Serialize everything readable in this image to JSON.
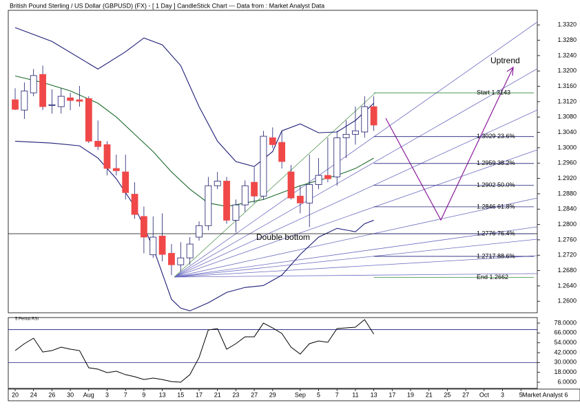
{
  "chart_data": [
    {
      "type": "candlestick",
      "title": "British Pound Sterling / US Dollar (GBPUSD) (FX) - [ 1 Day ] CandleStick Chart --- Data from : Market Analyst Data",
      "x": [
        0,
        1,
        2,
        3,
        4,
        5,
        6,
        7,
        8,
        9,
        10,
        11,
        12,
        13,
        14,
        15,
        16,
        17,
        18,
        19,
        20,
        21,
        22,
        23,
        24,
        25,
        26,
        27,
        28,
        29,
        30,
        31,
        32,
        33,
        34,
        35,
        36,
        37,
        38,
        39
      ],
      "open": [
        1.3125,
        1.3098,
        1.3143,
        1.3191,
        1.311,
        1.3107,
        1.313,
        1.3125,
        1.3128,
        1.3017,
        1.3008,
        1.2946,
        1.2937,
        1.2879,
        1.2821,
        1.2721,
        1.277,
        1.2725,
        1.2695,
        1.2713,
        1.2767,
        1.2797,
        1.2901,
        1.2913,
        1.2811,
        1.2851,
        1.291,
        1.2874,
        1.3026,
        1.3014,
        1.2937,
        1.2874,
        1.2856,
        1.2904,
        1.2928,
        1.2924,
        1.3026,
        1.3035,
        1.3041,
        1.3107
      ],
      "high": [
        1.3155,
        1.317,
        1.3205,
        1.3214,
        1.3152,
        1.3155,
        1.3143,
        1.3161,
        1.3134,
        1.3071,
        1.3017,
        1.2982,
        1.2982,
        1.291,
        1.2847,
        1.2821,
        1.2829,
        1.2749,
        1.2754,
        1.2767,
        1.2808,
        1.2924,
        1.2937,
        1.2924,
        1.2865,
        1.2915,
        1.2949,
        1.3044,
        1.3053,
        1.3044,
        1.2955,
        1.2901,
        1.2982,
        1.2973,
        1.3026,
        1.3044,
        1.3071,
        1.3107,
        1.3134,
        1.3134
      ],
      "low": [
        1.3098,
        1.3075,
        1.3134,
        1.3098,
        1.3089,
        1.3089,
        1.3098,
        1.3107,
        1.3012,
        1.2994,
        1.2928,
        1.2928,
        1.2865,
        1.2815,
        1.2725,
        1.2713,
        1.2704,
        1.2668,
        1.2677,
        1.2695,
        1.2758,
        1.2785,
        1.2892,
        1.2802,
        1.2779,
        1.2833,
        1.2856,
        1.2865,
        1.2999,
        1.2946,
        1.2865,
        1.2829,
        1.2793,
        1.2892,
        1.291,
        1.2901,
        1.2973,
        1.3008,
        1.3026,
        1.3044
      ],
      "close": [
        1.31,
        1.3148,
        1.3188,
        1.3107,
        1.3112,
        1.3134,
        1.3123,
        1.3121,
        1.3017,
        1.3003,
        1.2946,
        1.294,
        1.2883,
        1.2826,
        1.2767,
        1.2767,
        1.2722,
        1.2695,
        1.2713,
        1.2749,
        1.2797,
        1.2901,
        1.2913,
        1.2811,
        1.2851,
        1.2901,
        1.2874,
        1.303,
        1.3008,
        1.2964,
        1.2869,
        1.2856,
        1.2904,
        1.2928,
        1.2919,
        1.3026,
        1.3035,
        1.3044,
        1.3107,
        1.3059
      ],
      "up_color": "#ffffff",
      "down_color": "#f04848",
      "outline_color": "#1a1a6e",
      "lines": [
        {
          "color": "#1c1c78",
          "x": [
            0,
            4,
            9,
            12,
            14,
            16,
            18,
            20,
            22,
            24,
            26,
            28,
            29,
            31,
            33,
            35,
            37,
            39
          ],
          "values": [
            1.3313,
            1.3277,
            1.3205,
            1.325,
            1.3286,
            1.3268,
            1.3214,
            1.3107,
            1.3017,
            1.2964,
            1.2951,
            1.299,
            1.3044,
            1.3062,
            1.3039,
            1.3041,
            1.3071,
            1.3116
          ]
        },
        {
          "color": "#1c1c78",
          "x": [
            0,
            4,
            7,
            9,
            11,
            13,
            15,
            17,
            18,
            19,
            21,
            23,
            25,
            27,
            29,
            31,
            33,
            35,
            37,
            38,
            39
          ],
          "values": [
            1.3017,
            1.3012,
            1.3005,
            1.2973,
            1.2919,
            1.2847,
            1.274,
            1.2605,
            1.2582,
            1.2575,
            1.2596,
            1.2623,
            1.2636,
            1.2641,
            1.2668,
            1.2722,
            1.2767,
            1.279,
            1.2781,
            1.2802,
            1.2811
          ]
        },
        {
          "color": "#1a6a2a",
          "x": [
            0,
            3,
            6,
            9,
            11,
            13,
            15,
            17,
            19,
            21,
            23,
            25,
            27,
            29,
            31,
            33,
            35,
            37,
            39
          ],
          "values": [
            1.3187,
            1.317,
            1.3148,
            1.3116,
            1.308,
            1.3035,
            1.299,
            1.2937,
            1.2892,
            1.2856,
            1.2847,
            1.2856,
            1.2865,
            1.2883,
            1.2901,
            1.2915,
            1.2928,
            1.2946,
            1.2973
          ]
        }
      ],
      "fib_levels": [
        {
          "value": 1.3143,
          "label": "Start 1.3143"
        },
        {
          "value": 1.3029,
          "label": "1.3029 23.6%"
        },
        {
          "value": 1.2959,
          "label": "1.2959 38.2%"
        },
        {
          "value": 1.2902,
          "label": "1.2902 50.0%"
        },
        {
          "value": 1.2846,
          "label": "1.2846 61.8%"
        },
        {
          "value": 1.2776,
          "label": "1.2776 76.4%"
        },
        {
          "value": 1.2717,
          "label": "1.2717 88.6%"
        },
        {
          "value": 1.2662,
          "label": "End 1.2662"
        }
      ],
      "fib_color": "#1c1c78",
      "fib_end_color": "#2a8a3a",
      "support": 1.2776,
      "annotations": [
        "Double bottom",
        "Uptrend"
      ],
      "xlim": [
        -0.75,
        56.78
      ],
      "ylim": [
        1.257,
        1.3358
      ],
      "yticks": [
        {
          "value": 1.26,
          "label": "1.2600"
        },
        {
          "value": 1.264,
          "label": "1.2640"
        },
        {
          "value": 1.268,
          "label": "1.2680"
        },
        {
          "value": 1.272,
          "label": "1.2720"
        },
        {
          "value": 1.276,
          "label": "1.2760"
        },
        {
          "value": 1.28,
          "label": "1.2800"
        },
        {
          "value": 1.284,
          "label": "1.2840"
        },
        {
          "value": 1.288,
          "label": "1.2880"
        },
        {
          "value": 1.292,
          "label": "1.2920"
        },
        {
          "value": 1.296,
          "label": "1.2960"
        },
        {
          "value": 1.3,
          "label": "1.3000"
        },
        {
          "value": 1.304,
          "label": "1.3040"
        },
        {
          "value": 1.308,
          "label": "1.3080"
        },
        {
          "value": 1.312,
          "label": "1.3120"
        },
        {
          "value": 1.316,
          "label": "1.3160"
        },
        {
          "value": 1.32,
          "label": "1.3200"
        },
        {
          "value": 1.324,
          "label": "1.3240"
        },
        {
          "value": 1.328,
          "label": "1.3280"
        },
        {
          "value": 1.332,
          "label": "1.3320"
        }
      ]
    },
    {
      "type": "line",
      "title": "5 Period RSI",
      "x": [
        0,
        1,
        2,
        3,
        4,
        5,
        6,
        7,
        8,
        9,
        10,
        11,
        12,
        13,
        14,
        15,
        16,
        17,
        18,
        19,
        20,
        21,
        22,
        23,
        24,
        25,
        26,
        27,
        28,
        29,
        30,
        31,
        32,
        33,
        34,
        35,
        36,
        37,
        38,
        39
      ],
      "values": [
        44.5,
        52.9,
        59.6,
        42.8,
        44.5,
        48.7,
        46.2,
        44.5,
        23.6,
        21.9,
        17.7,
        19.4,
        15.2,
        12.7,
        9.3,
        11.0,
        9.3,
        6.8,
        6.0,
        15.2,
        36.1,
        69.6,
        71.3,
        46.2,
        52.9,
        61.3,
        61.3,
        78.0,
        72.1,
        65.4,
        48.7,
        40.3,
        52.9,
        56.2,
        54.6,
        71.3,
        72.1,
        73.0,
        82.2,
        64.6
      ],
      "color": "#000000",
      "levels": [
        70,
        30
      ],
      "level_color": "#1c1c78",
      "xlim": [
        -0.75,
        56.78
      ],
      "ylim": [
        -1.5,
        84.7
      ],
      "yticks": [
        {
          "value": 6,
          "label": "6.0000"
        },
        {
          "value": 18,
          "label": "18.0000"
        },
        {
          "value": 30,
          "label": "30.0000"
        },
        {
          "value": 42,
          "label": "42.0000"
        },
        {
          "value": 54,
          "label": "54.0000"
        },
        {
          "value": 66,
          "label": "66.0000"
        },
        {
          "value": 78,
          "label": "78.0000"
        }
      ],
      "xticks": [
        {
          "value": 0,
          "label": "20"
        },
        {
          "value": 2,
          "label": "24"
        },
        {
          "value": 4,
          "label": "26"
        },
        {
          "value": 6,
          "label": "30"
        },
        {
          "value": 8,
          "label": "Aug"
        },
        {
          "value": 10,
          "label": "3"
        },
        {
          "value": 12,
          "label": "7"
        },
        {
          "value": 14,
          "label": "9"
        },
        {
          "value": 16,
          "label": "13"
        },
        {
          "value": 18,
          "label": "15"
        },
        {
          "value": 20,
          "label": "17"
        },
        {
          "value": 22,
          "label": "21"
        },
        {
          "value": 24,
          "label": "23"
        },
        {
          "value": 26,
          "label": "27"
        },
        {
          "value": 28,
          "label": "29"
        },
        {
          "value": 31,
          "label": "Sep"
        },
        {
          "value": 33,
          "label": "5"
        },
        {
          "value": 35,
          "label": "7"
        },
        {
          "value": 37,
          "label": "11"
        },
        {
          "value": 39,
          "label": "13"
        },
        {
          "value": 41,
          "label": "17"
        },
        {
          "value": 43,
          "label": "19"
        },
        {
          "value": 45,
          "label": "21"
        },
        {
          "value": 47,
          "label": "25"
        },
        {
          "value": 49,
          "label": "27"
        },
        {
          "value": 51,
          "label": "Oct"
        },
        {
          "value": 53,
          "label": "3"
        },
        {
          "value": 55,
          "label": "5"
        }
      ],
      "note": "Market Analyst 6"
    }
  ]
}
